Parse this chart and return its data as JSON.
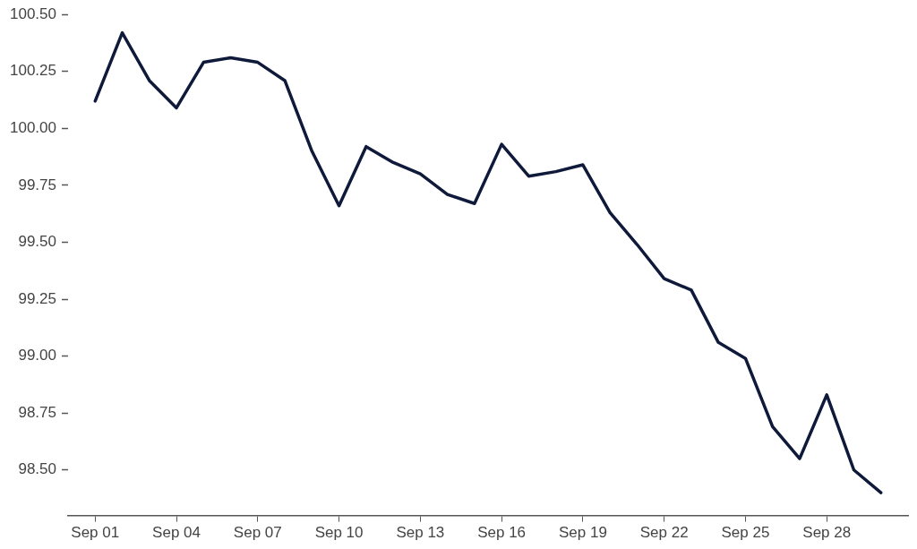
{
  "chart_data": {
    "type": "line",
    "x": [
      "--09-01",
      "--09-02",
      "--09-03",
      "--09-04",
      "--09-05",
      "--09-06",
      "--09-07",
      "--09-08",
      "--09-09",
      "--09-10",
      "--09-11",
      "--09-12",
      "--09-13",
      "--09-14",
      "--09-15",
      "--09-16",
      "--09-17",
      "--09-18",
      "--09-19",
      "--09-20",
      "--09-21",
      "--09-22",
      "--09-23",
      "--09-24",
      "--09-25",
      "--09-26",
      "--09-27",
      "--09-28",
      "--09-29",
      "--09-30"
    ],
    "series": [
      {
        "color": "#0f1a3a",
        "values": [
          100.12,
          100.42,
          100.21,
          100.09,
          100.29,
          100.31,
          100.29,
          100.21,
          99.9,
          99.66,
          99.92,
          99.85,
          99.8,
          99.71,
          99.67,
          99.93,
          99.79,
          99.81,
          99.84,
          99.63,
          99.49,
          99.34,
          99.29,
          99.06,
          98.99,
          98.69,
          98.55,
          98.83,
          98.5,
          98.4
        ]
      }
    ],
    "xlim": [
      "--08-31",
      "--10-01"
    ],
    "xticks": [
      {
        "value": "--09-01",
        "label": "Sep 01"
      },
      {
        "value": "--09-04",
        "label": "Sep 04"
      },
      {
        "value": "--09-07",
        "label": "Sep 07"
      },
      {
        "value": "--09-10",
        "label": "Sep 10"
      },
      {
        "value": "--09-13",
        "label": "Sep 13"
      },
      {
        "value": "--09-16",
        "label": "Sep 16"
      },
      {
        "value": "--09-19",
        "label": "Sep 19"
      },
      {
        "value": "--09-22",
        "label": "Sep 22"
      },
      {
        "value": "--09-25",
        "label": "Sep 25"
      },
      {
        "value": "--09-28",
        "label": "Sep 28"
      }
    ],
    "ylim": [
      98.3,
      100.5
    ],
    "yticks": [
      {
        "value": 98.5,
        "label": "98.50"
      },
      {
        "value": 98.75,
        "label": "98.75"
      },
      {
        "value": 99,
        "label": "99.00"
      },
      {
        "value": 99.25,
        "label": "99.25"
      },
      {
        "value": 99.5,
        "label": "99.50"
      },
      {
        "value": 99.75,
        "label": "99.75"
      },
      {
        "value": 100,
        "label": "100.00"
      },
      {
        "value": 100.25,
        "label": "100.25"
      },
      {
        "value": 100.5,
        "label": "100.50"
      }
    ],
    "grid": false,
    "legend": false,
    "marker": "none",
    "line_style": "solid"
  }
}
